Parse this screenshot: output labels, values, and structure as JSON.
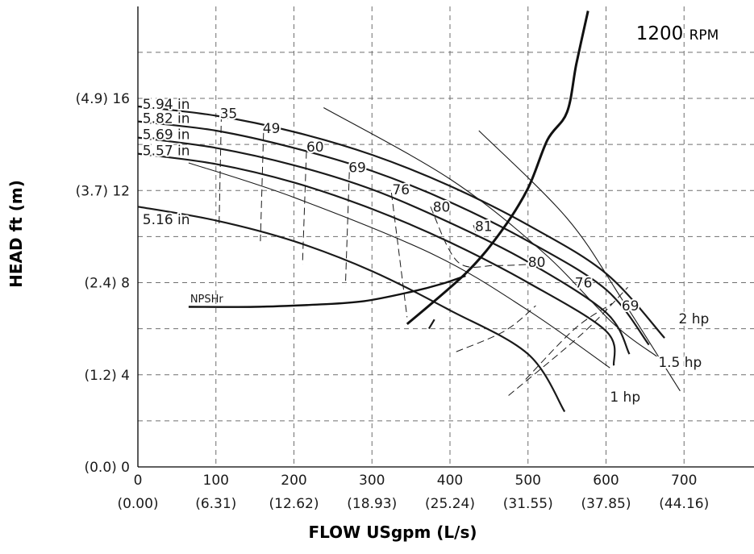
{
  "chart_data": {
    "type": "line",
    "title": "",
    "annotation_rpm": {
      "value": "1200",
      "unit": "RPM"
    },
    "xlabel": {
      "main": "FLOW",
      "units": "USgpm (L/s)"
    },
    "ylabel": {
      "main": "HEAD",
      "units": "ft (m)"
    },
    "xlim": [
      0,
      780
    ],
    "ylim": [
      0,
      19.8
    ],
    "grid": true,
    "x_ticks": [
      {
        "value": 0,
        "label": "0",
        "sublabel": "(0.00)"
      },
      {
        "value": 100,
        "label": "100",
        "sublabel": "(6.31)"
      },
      {
        "value": 200,
        "label": "200",
        "sublabel": "(12.62)"
      },
      {
        "value": 300,
        "label": "300",
        "sublabel": "(18.93)"
      },
      {
        "value": 400,
        "label": "400",
        "sublabel": "(25.24)"
      },
      {
        "value": 500,
        "label": "500",
        "sublabel": "(31.55)"
      },
      {
        "value": 600,
        "label": "600",
        "sublabel": "(37.85)"
      },
      {
        "value": 700,
        "label": "700",
        "sublabel": "(44.16)"
      }
    ],
    "y_ticks": [
      {
        "value": 0,
        "label": "(0.0) 0"
      },
      {
        "value": 4,
        "label": "(1.2) 4"
      },
      {
        "value": 8,
        "label": "(2.4) 8"
      },
      {
        "value": 12,
        "label": "(3.7) 12"
      },
      {
        "value": 16,
        "label": "(4.9) 16"
      }
    ],
    "x_grid": [
      0,
      100,
      200,
      300,
      400,
      500,
      600,
      700
    ],
    "y_grid": [
      2,
      4,
      6,
      8,
      10,
      12,
      14,
      16,
      18
    ],
    "impeller_curves": [
      {
        "name": "5.94 in",
        "points": [
          [
            0,
            15.65
          ],
          [
            100,
            15.25
          ],
          [
            200,
            14.55
          ],
          [
            300,
            13.55
          ],
          [
            400,
            12.2
          ],
          [
            500,
            10.5
          ],
          [
            600,
            8.4
          ],
          [
            675,
            5.6
          ]
        ]
      },
      {
        "name": "5.82 in",
        "points": [
          [
            0,
            15.0
          ],
          [
            100,
            14.6
          ],
          [
            200,
            13.85
          ],
          [
            300,
            12.85
          ],
          [
            400,
            11.5
          ],
          [
            500,
            9.8
          ],
          [
            600,
            7.7
          ],
          [
            655,
            5.3
          ]
        ]
      },
      {
        "name": "5.69 in",
        "points": [
          [
            0,
            14.3
          ],
          [
            100,
            13.85
          ],
          [
            200,
            13.1
          ],
          [
            300,
            12.05
          ],
          [
            400,
            10.6
          ],
          [
            500,
            8.9
          ],
          [
            600,
            6.7
          ],
          [
            630,
            4.9
          ]
        ]
      },
      {
        "name": "5.57 in",
        "points": [
          [
            0,
            13.6
          ],
          [
            100,
            13.15
          ],
          [
            200,
            12.35
          ],
          [
            300,
            11.2
          ],
          [
            400,
            9.75
          ],
          [
            500,
            8.0
          ],
          [
            600,
            5.9
          ],
          [
            610,
            4.4
          ]
        ]
      },
      {
        "name": "5.16 in",
        "points": [
          [
            0,
            11.3
          ],
          [
            100,
            10.7
          ],
          [
            200,
            9.8
          ],
          [
            300,
            8.5
          ],
          [
            400,
            6.8
          ],
          [
            500,
            4.9
          ],
          [
            547,
            2.4
          ]
        ]
      }
    ],
    "power_curves": [
      {
        "name": "2 hp",
        "points": [
          [
            437,
            14.6
          ],
          [
            550,
            10.8
          ],
          [
            620,
            7.3
          ],
          [
            695,
            3.3
          ]
        ]
      },
      {
        "name": "1.5 hp",
        "points": [
          [
            238,
            15.6
          ],
          [
            400,
            12.5
          ],
          [
            520,
            9.3
          ],
          [
            610,
            6.2
          ],
          [
            665,
            4.8
          ]
        ]
      },
      {
        "name": "1 hp",
        "points": [
          [
            65,
            13.2
          ],
          [
            200,
            11.7
          ],
          [
            380,
            9.2
          ],
          [
            500,
            6.8
          ],
          [
            605,
            4.3
          ]
        ]
      }
    ],
    "efficiency_lines": [
      {
        "name": "35",
        "points": [
          [
            107,
            15.3
          ],
          [
            104,
            10.4
          ]
        ]
      },
      {
        "name": "49",
        "points": [
          [
            161,
            14.5
          ],
          [
            157,
            9.8
          ]
        ]
      },
      {
        "name": "60",
        "points": [
          [
            216,
            13.7
          ],
          [
            211,
            8.8
          ]
        ]
      },
      {
        "name": "69",
        "points": [
          [
            271,
            12.8
          ],
          [
            266,
            7.9
          ]
        ]
      },
      {
        "name": "76",
        "points": [
          [
            325,
            11.9
          ],
          [
            345,
            6.5
          ]
        ]
      },
      {
        "name": "80",
        "points": [
          [
            375,
            11.3
          ],
          [
            410,
            8.9
          ],
          [
            460,
            8.75
          ],
          [
            505,
            8.8
          ]
        ]
      },
      {
        "name": "81",
        "points": [
          [
            430,
            10.5
          ],
          [
            433,
            10.2
          ]
        ]
      },
      {
        "name": "80",
        "points": [
          [
            408,
            5.0
          ],
          [
            470,
            5.9
          ],
          [
            510,
            7.0
          ]
        ]
      },
      {
        "name": "76",
        "points": [
          [
            475,
            3.1
          ],
          [
            570,
            5.8
          ],
          [
            628,
            7.8
          ]
        ]
      },
      {
        "name": "69",
        "points": [
          [
            497,
            3.8
          ],
          [
            560,
            6.0
          ],
          [
            608,
            7.1
          ]
        ]
      }
    ],
    "system_curve": {
      "points": [
        [
          345,
          6.2
        ],
        [
          420,
          8.4
        ],
        [
          465,
          10.2
        ],
        [
          500,
          12.1
        ],
        [
          525,
          14.2
        ],
        [
          550,
          15.4
        ],
        [
          562,
          17.5
        ],
        [
          577,
          19.8
        ]
      ]
    },
    "npsh_curve": {
      "name": "NPSHr",
      "points": [
        [
          65,
          6.95
        ],
        [
          150,
          6.95
        ],
        [
          230,
          7.05
        ],
        [
          290,
          7.2
        ],
        [
          350,
          7.6
        ],
        [
          390,
          7.95
        ],
        [
          420,
          8.3
        ]
      ]
    },
    "marker": {
      "points": [
        [
          380,
          6.4
        ],
        [
          373,
          6.0
        ]
      ]
    },
    "point_labels": [
      {
        "text": "35",
        "x": 105,
        "y": 15.35
      },
      {
        "text": "49",
        "x": 160,
        "y": 14.7
      },
      {
        "text": "60",
        "x": 216,
        "y": 13.9
      },
      {
        "text": "69",
        "x": 270,
        "y": 13.0
      },
      {
        "text": "76",
        "x": 326,
        "y": 12.05
      },
      {
        "text": "80",
        "x": 378,
        "y": 11.3
      },
      {
        "text": "81",
        "x": 432,
        "y": 10.45
      },
      {
        "text": "80",
        "x": 500,
        "y": 8.9
      },
      {
        "text": "76",
        "x": 560,
        "y": 8.0
      },
      {
        "text": "69",
        "x": 620,
        "y": 7.0
      },
      {
        "text": "2 hp",
        "x": 693,
        "y": 6.45
      },
      {
        "text": "1.5 hp",
        "x": 667,
        "y": 4.55
      },
      {
        "text": "1 hp",
        "x": 605,
        "y": 3.05
      },
      {
        "text": "5.94 in",
        "x": 6,
        "y": 15.75
      },
      {
        "text": "5.82 in",
        "x": 6,
        "y": 15.15
      },
      {
        "text": "5.69 in",
        "x": 6,
        "y": 14.45
      },
      {
        "text": "5.57 in",
        "x": 6,
        "y": 13.75
      },
      {
        "text": "5.16 in",
        "x": 6,
        "y": 10.75
      }
    ],
    "npsh_label": {
      "text": "NPSHr",
      "x": 67,
      "y": 7.15
    }
  }
}
